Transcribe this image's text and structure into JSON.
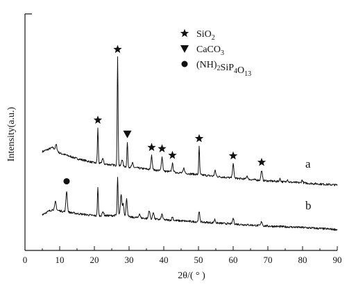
{
  "chart_data": {
    "type": "line",
    "title": "",
    "xlabel": "2θ/(  ° )",
    "ylabel": "Intensity(a.u.)",
    "xlim": [
      0,
      90
    ],
    "x_ticks": [
      0,
      10,
      20,
      30,
      40,
      50,
      60,
      70,
      80,
      90
    ],
    "grid": false,
    "legend_position": "top-center",
    "legend": [
      {
        "marker": "star",
        "label_parts": [
          [
            "SiO",
            ""
          ],
          [
            "2",
            "sub"
          ]
        ]
      },
      {
        "marker": "triangle-down",
        "label_parts": [
          [
            "CaCO",
            ""
          ],
          [
            "3",
            "sub"
          ]
        ]
      },
      {
        "marker": "circle",
        "label_parts": [
          [
            "(NH)",
            ""
          ],
          [
            "2",
            "sub"
          ],
          [
            "SiP",
            ""
          ],
          [
            "4",
            "sub"
          ],
          [
            "O",
            ""
          ],
          [
            "13",
            "sub"
          ]
        ]
      }
    ],
    "series": [
      {
        "name": "a",
        "baseline": [
          [
            5,
            0.52
          ],
          [
            8,
            0.58
          ],
          [
            10,
            0.5
          ],
          [
            15,
            0.42
          ],
          [
            20,
            0.36
          ],
          [
            25,
            0.33
          ],
          [
            30,
            0.3
          ],
          [
            40,
            0.24
          ],
          [
            50,
            0.19
          ],
          [
            60,
            0.14
          ],
          [
            70,
            0.1
          ],
          [
            80,
            0.07
          ],
          [
            90,
            0.04
          ]
        ],
        "peaks": [
          [
            9,
            0.08
          ],
          [
            21,
            0.5
          ],
          [
            22.4,
            0.08
          ],
          [
            26.7,
            1.55
          ],
          [
            28,
            0.1
          ],
          [
            29.5,
            0.35
          ],
          [
            31,
            0.06
          ],
          [
            36.5,
            0.2
          ],
          [
            39.5,
            0.2
          ],
          [
            42.5,
            0.12
          ],
          [
            45.8,
            0.07
          ],
          [
            50.2,
            0.4
          ],
          [
            54.8,
            0.08
          ],
          [
            60,
            0.2
          ],
          [
            64,
            0.05
          ],
          [
            68.2,
            0.14
          ],
          [
            73.5,
            0.04
          ],
          [
            75.6,
            0.04
          ],
          [
            79.9,
            0.04
          ]
        ],
        "markers": [
          {
            "type": "star",
            "x": 21
          },
          {
            "type": "star",
            "x": 26.7
          },
          {
            "type": "triangle-down",
            "x": 29.5
          },
          {
            "type": "star",
            "x": 36.5
          },
          {
            "type": "star",
            "x": 39.5
          },
          {
            "type": "star",
            "x": 42.5
          },
          {
            "type": "star",
            "x": 50.2
          },
          {
            "type": "star",
            "x": 60
          },
          {
            "type": "star",
            "x": 68.2
          }
        ]
      },
      {
        "name": "b",
        "baseline": [
          [
            5,
            0.22
          ],
          [
            8,
            0.29
          ],
          [
            10,
            0.27
          ],
          [
            15,
            0.23
          ],
          [
            20,
            0.2
          ],
          [
            25,
            0.2
          ],
          [
            27,
            0.21
          ],
          [
            30,
            0.18
          ],
          [
            40,
            0.14
          ],
          [
            50,
            0.11
          ],
          [
            60,
            0.08
          ],
          [
            70,
            0.05
          ],
          [
            80,
            0.03
          ],
          [
            90,
            0.0
          ]
        ],
        "peaks": [
          [
            8.8,
            0.12
          ],
          [
            12,
            0.3
          ],
          [
            21,
            0.4
          ],
          [
            22.5,
            0.06
          ],
          [
            26.7,
            0.55
          ],
          [
            27.7,
            0.3
          ],
          [
            28.3,
            0.18
          ],
          [
            29.3,
            0.25
          ],
          [
            33,
            0.06
          ],
          [
            35.8,
            0.12
          ],
          [
            37,
            0.1
          ],
          [
            39.5,
            0.08
          ],
          [
            42.5,
            0.05
          ],
          [
            50.2,
            0.14
          ],
          [
            54.7,
            0.05
          ],
          [
            60,
            0.08
          ],
          [
            68.2,
            0.06
          ]
        ],
        "markers": [
          {
            "type": "circle",
            "x": 12
          }
        ]
      }
    ]
  }
}
